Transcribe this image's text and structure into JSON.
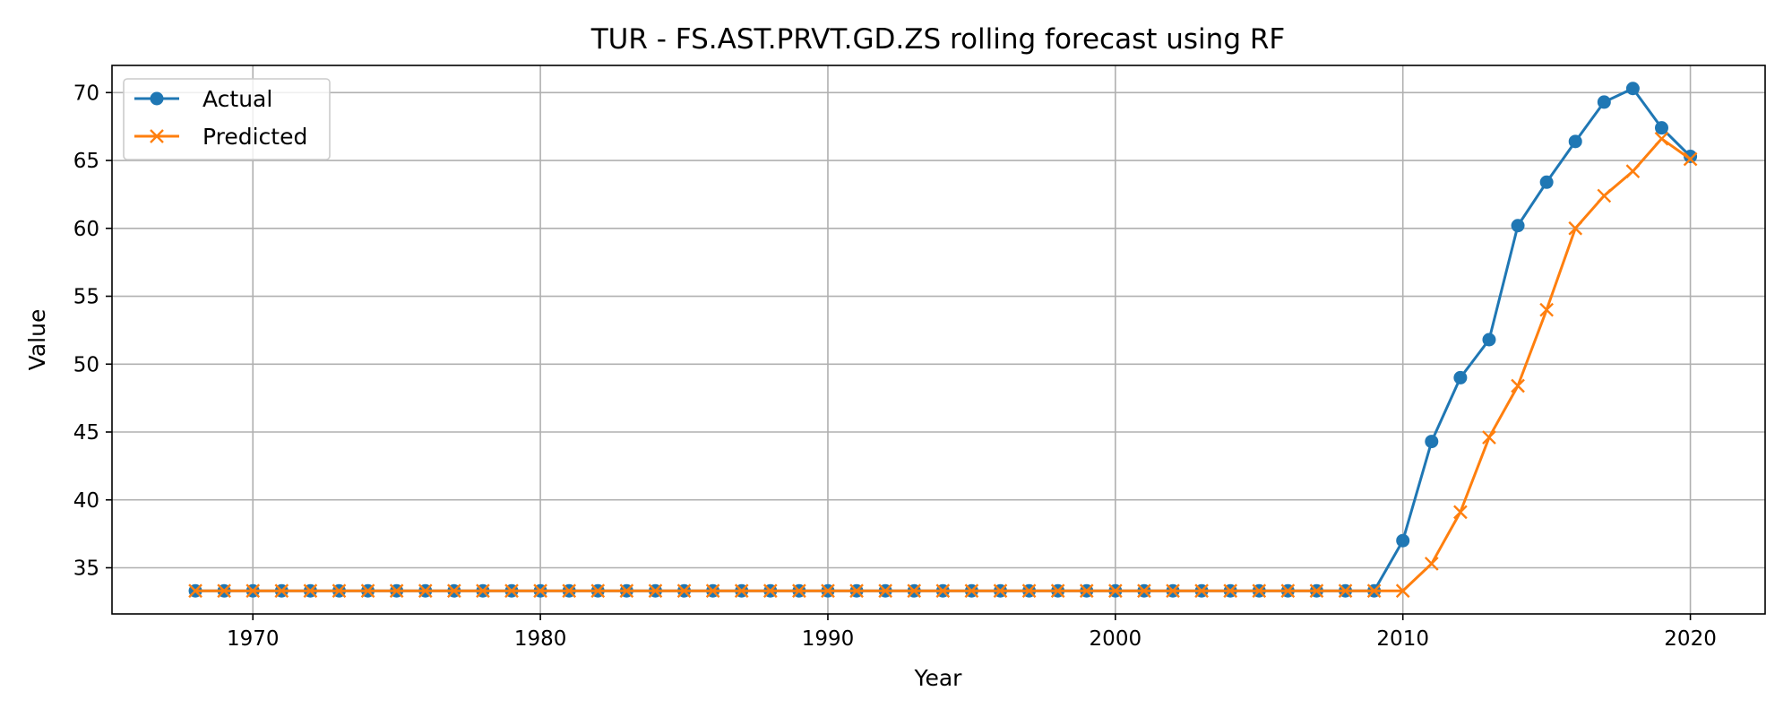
{
  "chart_data": {
    "type": "line",
    "title": "TUR - FS.AST.PRVT.GD.ZS rolling forecast using RF",
    "xlabel": "Year",
    "ylabel": "Value",
    "xlim": [
      1965.1,
      2022.6
    ],
    "ylim": [
      31.6,
      72.0
    ],
    "xticks": [
      1970,
      1980,
      1990,
      2000,
      2010,
      2020
    ],
    "yticks": [
      35,
      40,
      45,
      50,
      55,
      60,
      65,
      70
    ],
    "grid": true,
    "legend_position": "top-left",
    "x": [
      1968,
      1969,
      1970,
      1971,
      1972,
      1973,
      1974,
      1975,
      1976,
      1977,
      1978,
      1979,
      1980,
      1981,
      1982,
      1983,
      1984,
      1985,
      1986,
      1987,
      1988,
      1989,
      1990,
      1991,
      1992,
      1993,
      1994,
      1995,
      1996,
      1997,
      1998,
      1999,
      2000,
      2001,
      2002,
      2003,
      2004,
      2005,
      2006,
      2007,
      2008,
      2009,
      2010,
      2011,
      2012,
      2013,
      2014,
      2015,
      2016,
      2017,
      2018,
      2019,
      2020
    ],
    "series": [
      {
        "name": "Actual",
        "color": "#1f77b4",
        "marker": "circle",
        "values": [
          33.3,
          33.3,
          33.3,
          33.3,
          33.3,
          33.3,
          33.3,
          33.3,
          33.3,
          33.3,
          33.3,
          33.3,
          33.3,
          33.3,
          33.3,
          33.3,
          33.3,
          33.3,
          33.3,
          33.3,
          33.3,
          33.3,
          33.3,
          33.3,
          33.3,
          33.3,
          33.3,
          33.3,
          33.3,
          33.3,
          33.3,
          33.3,
          33.3,
          33.3,
          33.3,
          33.3,
          33.3,
          33.3,
          33.3,
          33.3,
          33.3,
          33.3,
          37.0,
          44.3,
          49.0,
          51.8,
          60.2,
          63.4,
          66.4,
          69.3,
          70.3,
          67.4,
          65.3
        ]
      },
      {
        "name": "Predicted",
        "color": "#ff7f0e",
        "marker": "x",
        "values": [
          33.3,
          33.3,
          33.3,
          33.3,
          33.3,
          33.3,
          33.3,
          33.3,
          33.3,
          33.3,
          33.3,
          33.3,
          33.3,
          33.3,
          33.3,
          33.3,
          33.3,
          33.3,
          33.3,
          33.3,
          33.3,
          33.3,
          33.3,
          33.3,
          33.3,
          33.3,
          33.3,
          33.3,
          33.3,
          33.3,
          33.3,
          33.3,
          33.3,
          33.3,
          33.3,
          33.3,
          33.3,
          33.3,
          33.3,
          33.3,
          33.3,
          33.3,
          33.3,
          35.3,
          39.1,
          44.6,
          48.4,
          54.0,
          60.0,
          62.4,
          64.2,
          66.6,
          65.1
        ]
      }
    ]
  }
}
